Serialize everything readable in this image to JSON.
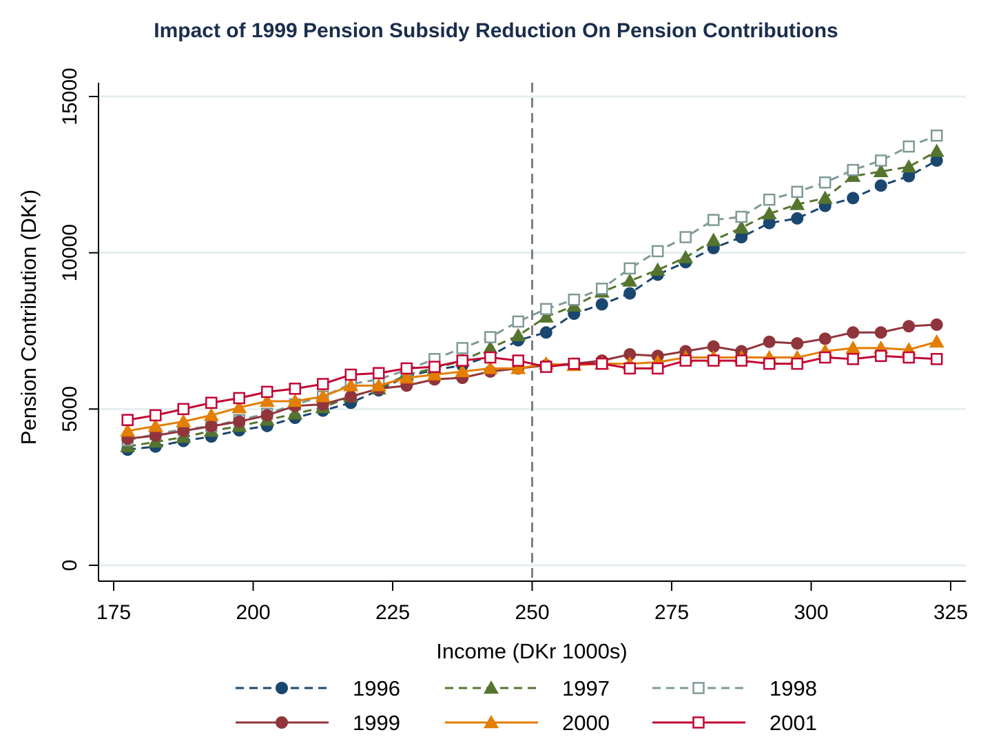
{
  "chart_data": {
    "type": "line",
    "title": "Impact of 1999 Pension Subsidy Reduction On Pension Contributions",
    "xlabel": "Income (DKr 1000s)",
    "ylabel": "Pension Contribution (DKr)",
    "xlim": [
      175,
      325
    ],
    "ylim": [
      0,
      15000
    ],
    "xticks": [
      "175",
      "200",
      "225",
      "250",
      "275",
      "300",
      "325"
    ],
    "yticks": [
      "0",
      "5000",
      "10000",
      "15000"
    ],
    "xtick_values": [
      175,
      200,
      225,
      250,
      275,
      300,
      325
    ],
    "ytick_values": [
      0,
      5000,
      10000,
      15000
    ],
    "grid": "horizontal",
    "reference_line": {
      "x": 250,
      "style": "dashed",
      "color": "#7f7f7f"
    },
    "legend_placement": "bottom",
    "x": [
      177.5,
      182.5,
      187.5,
      192.5,
      197.5,
      202.5,
      207.5,
      212.5,
      217.5,
      222.5,
      227.5,
      232.5,
      237.5,
      242.5,
      247.5,
      252.5,
      257.5,
      262.5,
      267.5,
      272.5,
      277.5,
      282.5,
      287.5,
      292.5,
      297.5,
      302.5,
      307.5,
      312.5,
      317.5,
      322.5
    ],
    "series": [
      {
        "name": "1996",
        "color": "#1a476f",
        "marker": "circle",
        "dash": "dashed",
        "values": [
          3700,
          3800,
          3980,
          4120,
          4320,
          4460,
          4720,
          4950,
          5200,
          5600,
          6050,
          6250,
          6400,
          6700,
          7200,
          7450,
          8050,
          8350,
          8700,
          9300,
          9700,
          10150,
          10500,
          10950,
          11100,
          11500,
          11750,
          12150,
          12450,
          12950
        ]
      },
      {
        "name": "1997",
        "color": "#55752f",
        "marker": "triangle",
        "dash": "dashed",
        "values": [
          3800,
          3950,
          4100,
          4300,
          4450,
          4650,
          4850,
          5050,
          5400,
          5650,
          6100,
          6300,
          6550,
          6950,
          7350,
          7950,
          8300,
          8750,
          9100,
          9450,
          9850,
          10400,
          10800,
          11250,
          11550,
          11750,
          12450,
          12600,
          12750,
          13250
        ]
      },
      {
        "name": "1998",
        "color": "#7f9a97",
        "marker": "square-hollow",
        "dash": "dashed",
        "values": [
          4000,
          4200,
          4350,
          4450,
          4650,
          4850,
          5150,
          5400,
          5800,
          5950,
          6250,
          6600,
          6950,
          7300,
          7800,
          8200,
          8500,
          8850,
          9500,
          10050,
          10500,
          11050,
          11150,
          11700,
          11950,
          12250,
          12650,
          12950,
          13400,
          13750
        ]
      },
      {
        "name": "1999",
        "color": "#90353b",
        "marker": "circle",
        "dash": "solid",
        "values": [
          4050,
          4150,
          4300,
          4450,
          4600,
          4800,
          5100,
          5150,
          5400,
          5650,
          5750,
          5950,
          6000,
          6200,
          6300,
          6400,
          6450,
          6550,
          6750,
          6700,
          6850,
          7000,
          6850,
          7150,
          7100,
          7250,
          7450,
          7450,
          7650,
          7700
        ]
      },
      {
        "name": "2000",
        "color": "#e37e00",
        "marker": "triangle",
        "dash": "solid",
        "values": [
          4300,
          4450,
          4600,
          4800,
          5050,
          5250,
          5250,
          5400,
          5750,
          5750,
          6000,
          6100,
          6200,
          6300,
          6300,
          6450,
          6400,
          6450,
          6450,
          6500,
          6650,
          6650,
          6650,
          6650,
          6650,
          6850,
          6950,
          6950,
          6900,
          7150
        ]
      },
      {
        "name": "2001",
        "color": "#c10534",
        "marker": "square-hollow",
        "dash": "solid",
        "values": [
          4650,
          4800,
          5000,
          5200,
          5350,
          5550,
          5650,
          5800,
          6100,
          6150,
          6300,
          6350,
          6550,
          6650,
          6550,
          6350,
          6450,
          6450,
          6300,
          6300,
          6550,
          6550,
          6550,
          6450,
          6450,
          6650,
          6600,
          6700,
          6650,
          6600
        ]
      }
    ]
  }
}
